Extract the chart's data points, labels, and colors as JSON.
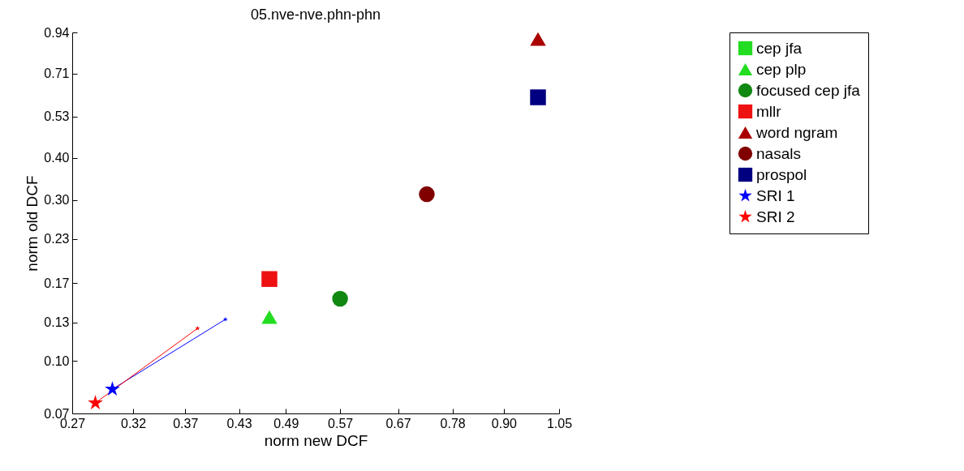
{
  "chart_data": {
    "type": "scatter",
    "title": "05.nve-nve.phn-phn",
    "xlabel": "norm new DCF",
    "ylabel": "norm old DCF",
    "log": "xy",
    "legend": "right",
    "xlim": [
      0.27,
      1.05
    ],
    "ylim": [
      0.07,
      0.94
    ],
    "xticks": [
      0.27,
      0.32,
      0.37,
      0.43,
      0.49,
      0.57,
      0.67,
      0.78,
      {
        "value": 0.9,
        "label": "0.90"
      },
      1.05
    ],
    "yticks": [
      0.07,
      {
        "value": 0.1,
        "label": "0.10"
      },
      0.13,
      0.17,
      0.23,
      {
        "value": 0.3,
        "label": "0.30"
      },
      {
        "value": 0.4,
        "label": "0.40"
      },
      0.53,
      0.71,
      0.94
    ],
    "series": [
      {
        "name": "cep jfa",
        "color": "#22dd22",
        "marker": "square",
        "x": [
          null
        ],
        "values": [
          null
        ]
      },
      {
        "name": "cep plp",
        "color": "#22dd22",
        "marker": "triangle",
        "x": [
          0.468
        ],
        "values": [
          0.135
        ]
      },
      {
        "name": "focused cep jfa",
        "color": "#118811",
        "marker": "circle",
        "x": [
          0.57
        ],
        "values": [
          0.153
        ]
      },
      {
        "name": "mllr",
        "color": "#ee1111",
        "marker": "square",
        "x": [
          0.468
        ],
        "values": [
          0.175
        ]
      },
      {
        "name": "word ngram",
        "color": "#aa0000",
        "marker": "triangle",
        "x": [
          0.99
        ],
        "values": [
          0.899
        ]
      },
      {
        "name": "nasals",
        "color": "#800000",
        "marker": "circle",
        "x": [
          0.726
        ],
        "values": [
          0.312
        ]
      },
      {
        "name": "prospol",
        "color": "#000080",
        "marker": "square",
        "x": [
          0.99
        ],
        "values": [
          0.604
        ]
      },
      {
        "name": "SRI 1",
        "color": "#0000ff",
        "type": "line",
        "marker": "star",
        "x": [
          0.302,
          0.414
        ],
        "values": [
          0.0826,
          0.133
        ]
      },
      {
        "name": "SRI 2",
        "color": "#ff0000",
        "type": "line",
        "marker": "star",
        "x": [
          0.288,
          0.383
        ],
        "values": [
          0.0752,
          0.125
        ]
      }
    ]
  }
}
